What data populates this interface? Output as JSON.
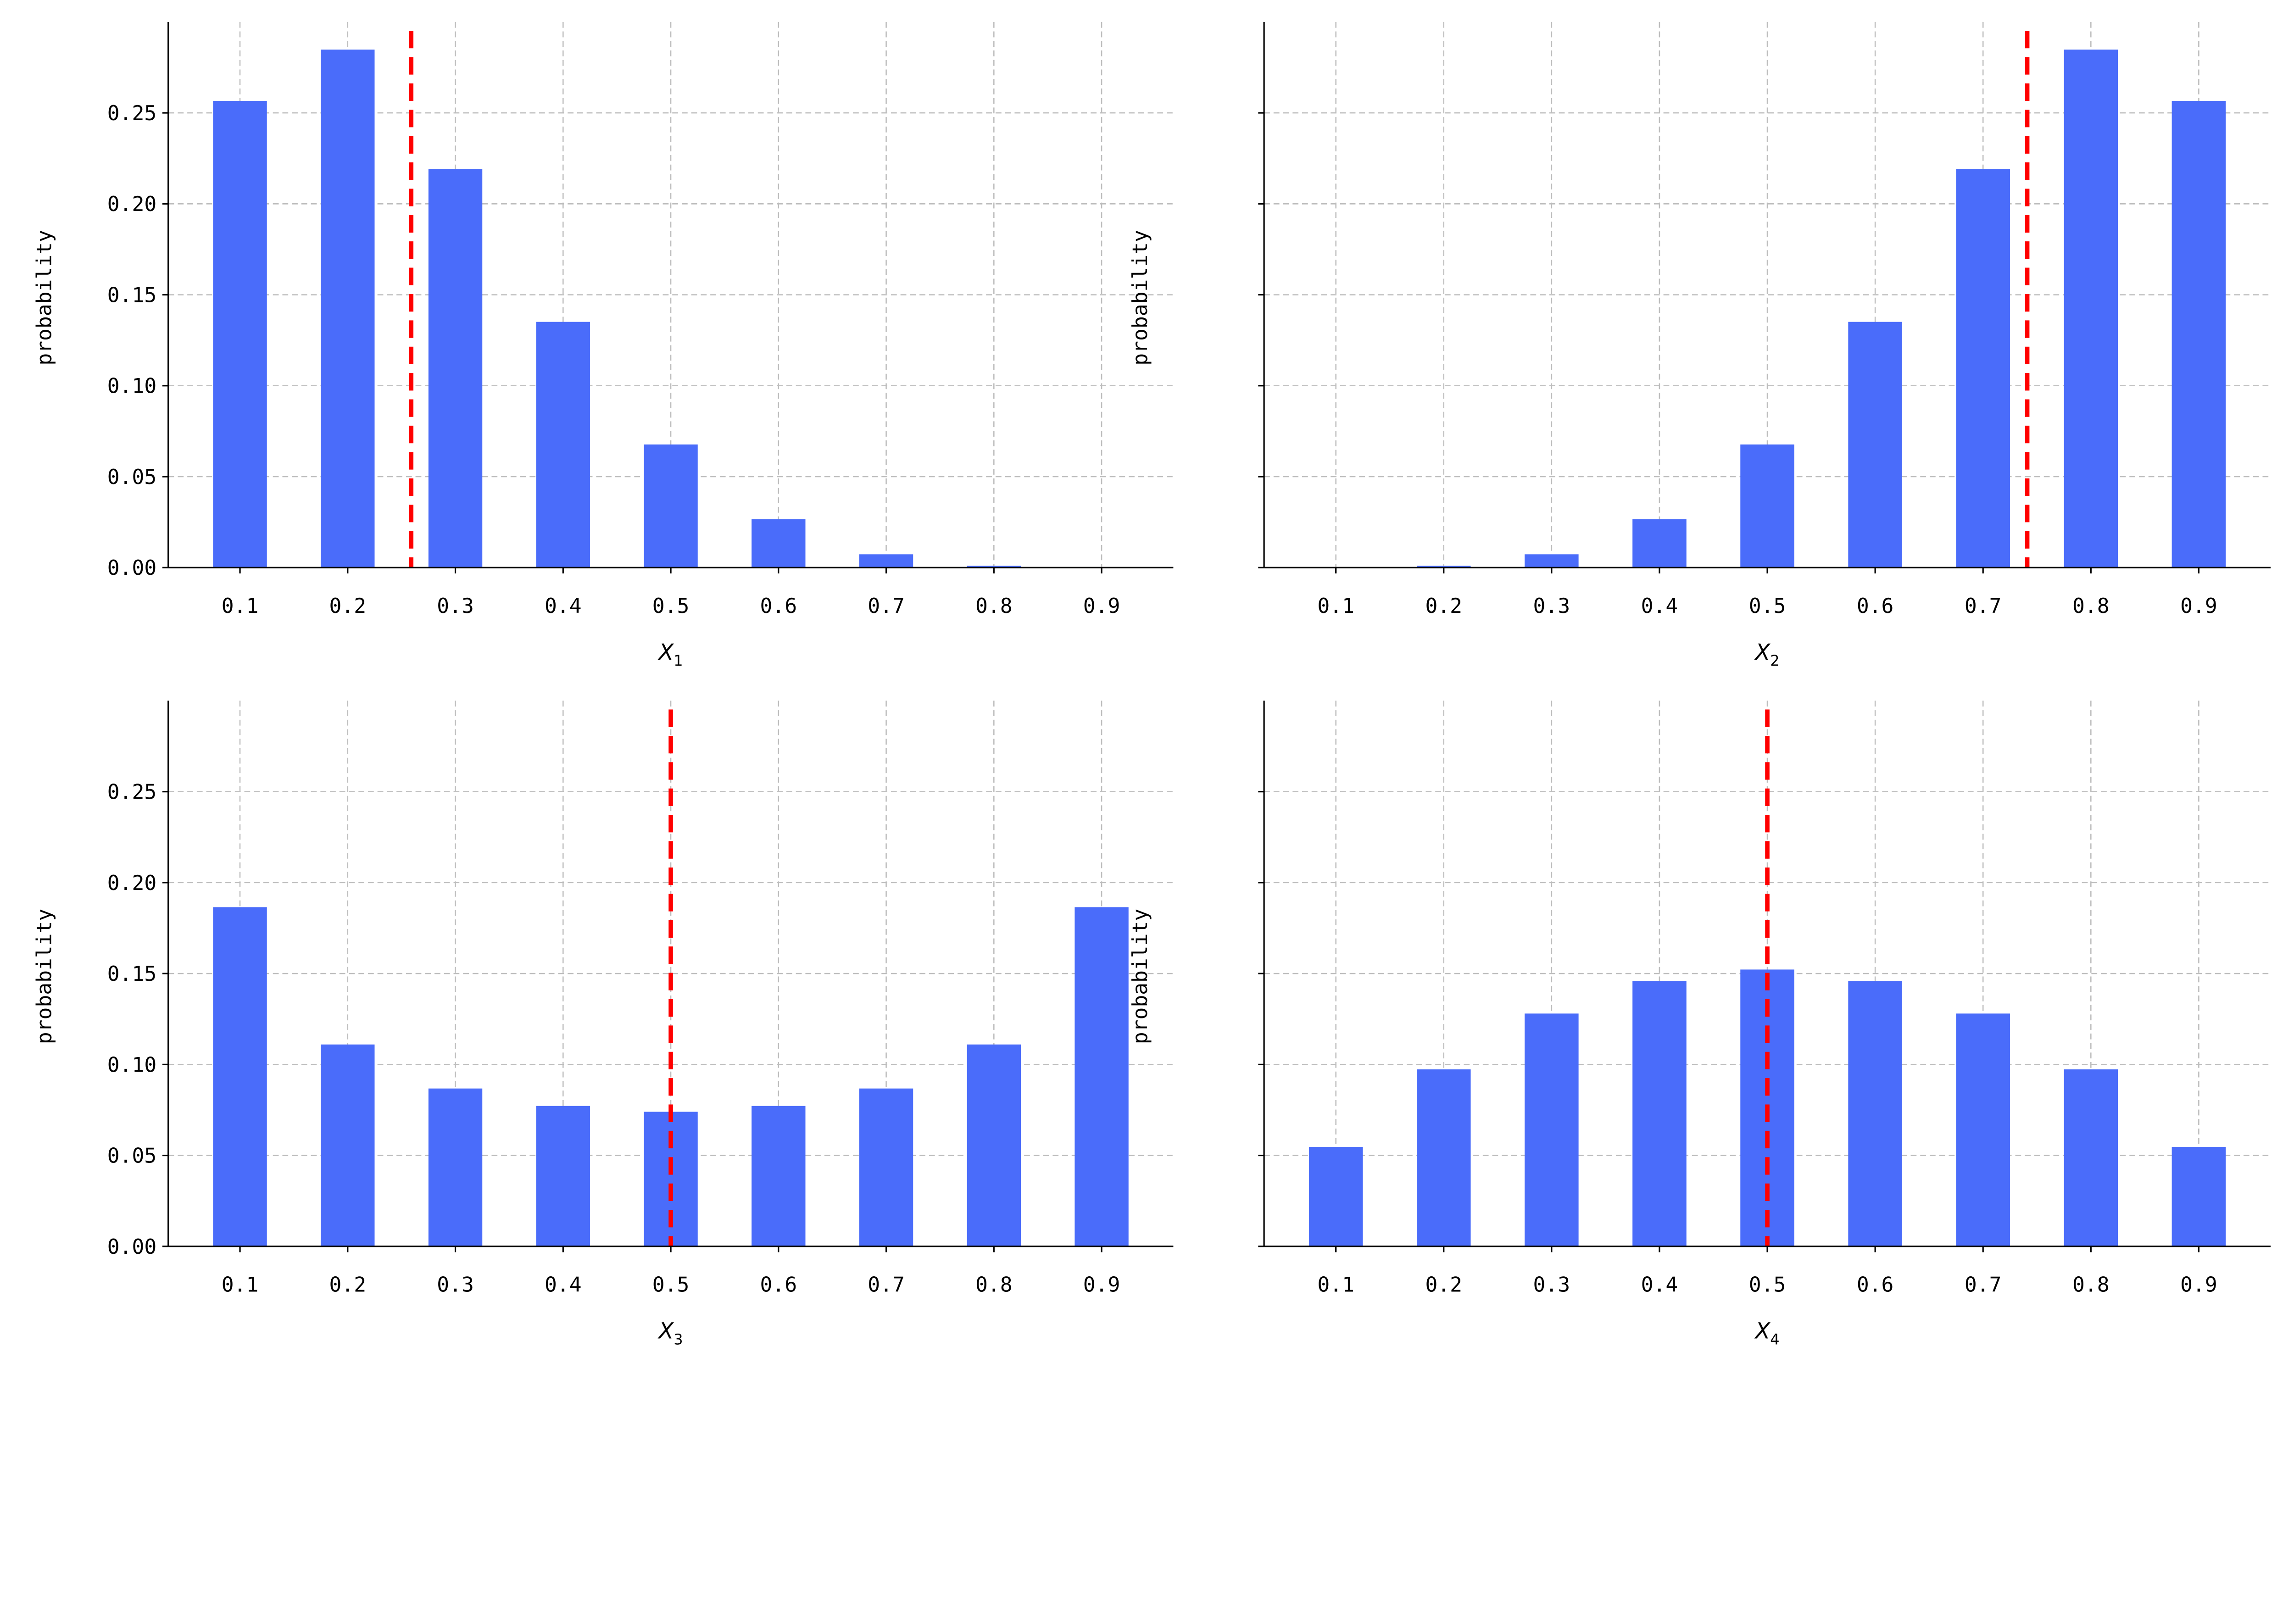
{
  "chart_data": [
    {
      "type": "bar",
      "categories": [
        "0.1",
        "0.2",
        "0.3",
        "0.4",
        "0.5",
        "0.6",
        "0.7",
        "0.8",
        "0.9"
      ],
      "x": [
        0.1,
        0.2,
        0.3,
        0.4,
        0.5,
        0.6,
        0.7,
        0.8,
        0.9
      ],
      "values": [
        0.2566,
        0.2848,
        0.2191,
        0.1351,
        0.0677,
        0.0266,
        0.0073,
        0.001,
        0.0
      ],
      "xlabel": "X",
      "xlabel_sub": "1",
      "ylabel": "probability",
      "ylim": [
        0,
        0.3
      ],
      "yticks": [
        "0.00",
        "0.05",
        "0.10",
        "0.15",
        "0.20",
        "0.25"
      ],
      "show_ytick_labels": true,
      "mean_line": 0.259,
      "grid": true
    },
    {
      "type": "bar",
      "categories": [
        "0.1",
        "0.2",
        "0.3",
        "0.4",
        "0.5",
        "0.6",
        "0.7",
        "0.8",
        "0.9"
      ],
      "x": [
        0.1,
        0.2,
        0.3,
        0.4,
        0.5,
        0.6,
        0.7,
        0.8,
        0.9
      ],
      "values": [
        0.0,
        0.001,
        0.0073,
        0.0266,
        0.0677,
        0.1351,
        0.2191,
        0.2848,
        0.2566
      ],
      "xlabel": "X",
      "xlabel_sub": "2",
      "ylabel": "probability",
      "ylim": [
        0,
        0.3
      ],
      "yticks": [
        "0.00",
        "0.05",
        "0.10",
        "0.15",
        "0.20",
        "0.25"
      ],
      "show_ytick_labels": false,
      "mean_line": 0.741,
      "grid": true
    },
    {
      "type": "bar",
      "categories": [
        "0.1",
        "0.2",
        "0.3",
        "0.4",
        "0.5",
        "0.6",
        "0.7",
        "0.8",
        "0.9"
      ],
      "x": [
        0.1,
        0.2,
        0.3,
        0.4,
        0.5,
        0.6,
        0.7,
        0.8,
        0.9
      ],
      "values": [
        0.1865,
        0.111,
        0.0868,
        0.0772,
        0.074,
        0.0772,
        0.0868,
        0.111,
        0.1865
      ],
      "xlabel": "X",
      "xlabel_sub": "3",
      "ylabel": "probability",
      "ylim": [
        0,
        0.3
      ],
      "yticks": [
        "0.00",
        "0.05",
        "0.10",
        "0.15",
        "0.20",
        "0.25"
      ],
      "show_ytick_labels": true,
      "mean_line": 0.5,
      "grid": true
    },
    {
      "type": "bar",
      "categories": [
        "0.1",
        "0.2",
        "0.3",
        "0.4",
        "0.5",
        "0.6",
        "0.7",
        "0.8",
        "0.9"
      ],
      "x": [
        0.1,
        0.2,
        0.3,
        0.4,
        0.5,
        0.6,
        0.7,
        0.8,
        0.9
      ],
      "values": [
        0.0547,
        0.0973,
        0.128,
        0.1459,
        0.1522,
        0.1459,
        0.128,
        0.0973,
        0.0547
      ],
      "xlabel": "X",
      "xlabel_sub": "4",
      "ylabel": "probability",
      "ylim": [
        0,
        0.3
      ],
      "yticks": [
        "0.00",
        "0.05",
        "0.10",
        "0.15",
        "0.20",
        "0.25"
      ],
      "show_ytick_labels": false,
      "mean_line": 0.5,
      "grid": true
    }
  ],
  "colors": {
    "bar": "#4a6cfa",
    "mean_line": "#ff0000",
    "grid": "#bdbdbd",
    "axis": "#000000"
  }
}
